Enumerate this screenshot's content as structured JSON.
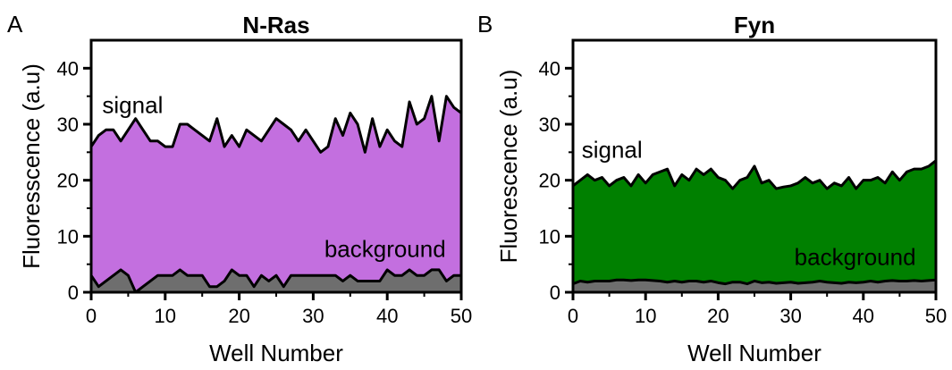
{
  "chart_data": [
    {
      "type": "area",
      "panel_label": "A",
      "title": "N-Ras",
      "xlabel": "Well Number",
      "ylabel": "Fluoresscence (a.u)",
      "xlim": [
        0,
        50
      ],
      "ylim": [
        0,
        45
      ],
      "xticks": [
        0,
        10,
        20,
        30,
        40,
        50
      ],
      "yticks": [
        0,
        10,
        20,
        30,
        40
      ],
      "grid": false,
      "annotations": [
        {
          "text": "signal",
          "x": 1.5,
          "y": 32
        },
        {
          "text": "background",
          "x": 31.5,
          "y": 6.3
        }
      ],
      "series": [
        {
          "color": "#c36fdf",
          "x": [
            0,
            1,
            2,
            3,
            4,
            5,
            6,
            7,
            8,
            9,
            10,
            11,
            12,
            13,
            14,
            15,
            16,
            17,
            18,
            19,
            20,
            21,
            22,
            23,
            24,
            25,
            26,
            27,
            28,
            29,
            30,
            31,
            32,
            33,
            34,
            35,
            36,
            37,
            38,
            39,
            40,
            41,
            42,
            43,
            44,
            45,
            46,
            47,
            48,
            49,
            50
          ],
          "values": [
            26,
            28,
            29,
            29,
            27,
            29,
            31,
            29,
            27,
            27,
            26,
            26,
            30,
            30,
            29,
            28,
            27,
            31,
            26,
            28,
            26,
            29,
            28,
            27,
            29,
            31,
            30,
            29,
            27,
            29,
            27,
            25,
            26,
            31,
            28,
            32,
            30,
            25,
            31,
            26,
            29,
            27,
            26,
            34,
            30,
            31,
            35,
            27,
            35,
            33,
            32
          ]
        },
        {
          "color": "#6e6e6e",
          "x": [
            0,
            1,
            2,
            3,
            4,
            5,
            6,
            7,
            8,
            9,
            10,
            11,
            12,
            13,
            14,
            15,
            16,
            17,
            18,
            19,
            20,
            21,
            22,
            23,
            24,
            25,
            26,
            27,
            28,
            29,
            30,
            31,
            32,
            33,
            34,
            35,
            36,
            37,
            38,
            39,
            40,
            41,
            42,
            43,
            44,
            45,
            46,
            47,
            48,
            49,
            50
          ],
          "values": [
            3,
            1,
            2,
            3,
            4,
            3,
            0,
            1,
            2,
            3,
            3,
            3,
            4,
            3,
            3,
            3,
            1,
            1,
            2,
            4,
            3,
            3,
            1,
            3,
            2,
            3,
            1,
            3,
            3,
            3,
            3,
            3,
            3,
            3,
            2,
            3,
            2,
            2,
            2,
            2,
            4,
            3,
            3,
            4,
            3,
            3,
            4,
            4,
            2,
            3,
            3
          ]
        }
      ]
    },
    {
      "type": "area",
      "panel_label": "B",
      "title": "Fyn",
      "xlabel": "Well Number",
      "ylabel": "Fluorescence (a.u)",
      "xlim": [
        0,
        50
      ],
      "ylim": [
        0,
        45
      ],
      "xticks": [
        0,
        10,
        20,
        30,
        40,
        50
      ],
      "yticks": [
        0,
        10,
        20,
        30,
        40
      ],
      "grid": false,
      "annotations": [
        {
          "text": "signal",
          "x": 1.2,
          "y": 24
        },
        {
          "text": "background",
          "x": 30.5,
          "y": 4.9
        }
      ],
      "series": [
        {
          "color": "#008000",
          "x": [
            0,
            1,
            2,
            3,
            4,
            5,
            6,
            7,
            8,
            9,
            10,
            11,
            12,
            13,
            14,
            15,
            16,
            17,
            18,
            19,
            20,
            21,
            22,
            23,
            24,
            25,
            26,
            27,
            28,
            29,
            30,
            31,
            32,
            33,
            34,
            35,
            36,
            37,
            38,
            39,
            40,
            41,
            42,
            43,
            44,
            45,
            46,
            47,
            48,
            49,
            50
          ],
          "values": [
            19,
            20,
            21,
            20,
            20.5,
            19,
            20,
            20.5,
            19,
            21,
            19.5,
            21,
            21.5,
            22,
            19,
            21,
            20,
            22,
            21,
            22,
            20.5,
            20,
            18.5,
            20,
            20.5,
            22.5,
            19.5,
            20,
            18.5,
            18.8,
            19,
            19.5,
            20.5,
            19.5,
            20,
            18.5,
            19.5,
            19,
            20.5,
            18.5,
            20,
            20,
            20.5,
            19.5,
            21.5,
            20,
            21.5,
            22,
            22,
            22.5,
            23.5
          ]
        },
        {
          "color": "#6e6e6e",
          "x": [
            0,
            1,
            2,
            3,
            4,
            5,
            6,
            7,
            8,
            9,
            10,
            11,
            12,
            13,
            14,
            15,
            16,
            17,
            18,
            19,
            20,
            21,
            22,
            23,
            24,
            25,
            26,
            27,
            28,
            29,
            30,
            31,
            32,
            33,
            34,
            35,
            36,
            37,
            38,
            39,
            40,
            41,
            42,
            43,
            44,
            45,
            46,
            47,
            48,
            49,
            50
          ],
          "values": [
            1.5,
            2,
            1.8,
            2,
            2,
            2,
            2.2,
            2.2,
            2.1,
            2.2,
            2.2,
            2.1,
            2,
            1.8,
            2,
            1.8,
            2,
            2,
            1.8,
            2,
            1.7,
            1.5,
            1.8,
            1.8,
            1.5,
            2,
            1.7,
            1.8,
            1.6,
            1.7,
            1.8,
            1.6,
            1.7,
            1.8,
            2,
            1.8,
            1.7,
            1.6,
            1.8,
            1.7,
            1.8,
            2,
            1.8,
            2,
            2.1,
            2,
            2,
            2.1,
            2,
            2.1,
            2.2
          ]
        }
      ]
    }
  ]
}
